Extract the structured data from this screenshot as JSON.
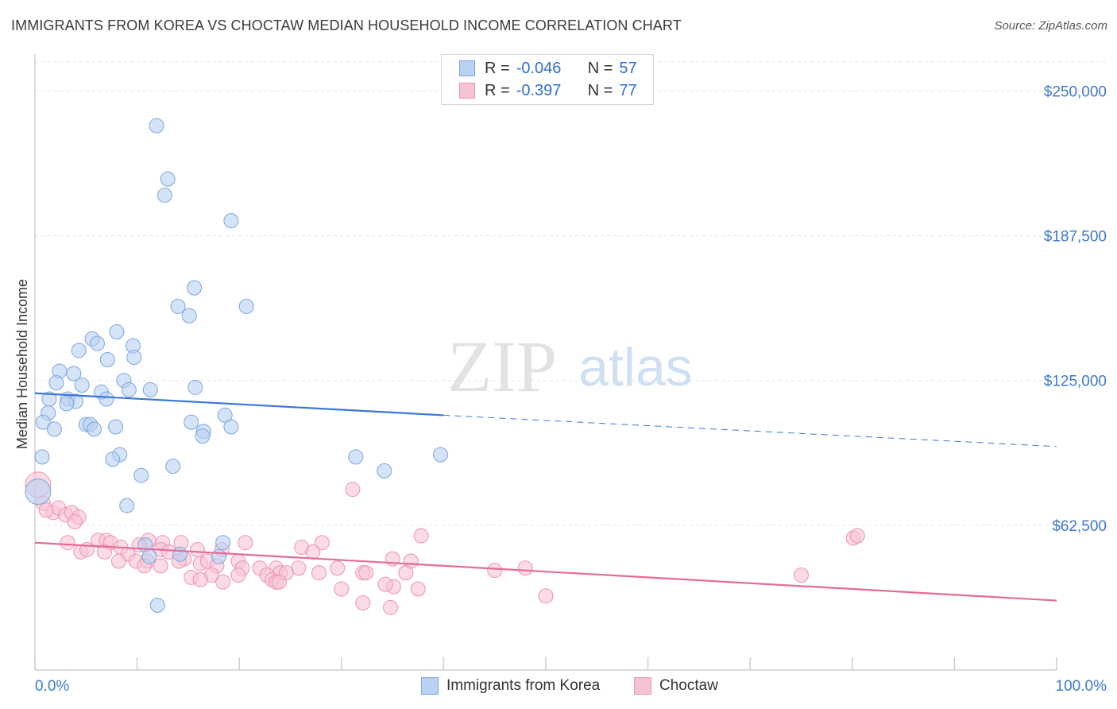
{
  "title": "IMMIGRANTS FROM KOREA VS CHOCTAW MEDIAN HOUSEHOLD INCOME CORRELATION CHART",
  "source": "Source: ZipAtlas.com",
  "watermark": {
    "zip": "ZIP",
    "atlas": "atlas"
  },
  "legend": {
    "series1": {
      "r_label": "R =",
      "r_value": "-0.046",
      "n_label": "N =",
      "n_value": "57"
    },
    "series2": {
      "r_label": "R =",
      "r_value": "-0.397",
      "n_label": "N =",
      "n_value": "77"
    }
  },
  "colors": {
    "blue_fill": "#b9d1f2",
    "blue_stroke": "#7aa6e0",
    "blue_line": "#3a78d4",
    "pink_fill": "#f6c3d5",
    "pink_stroke": "#ec93b3",
    "pink_line": "#e56b98",
    "tick_label": "#3f78cf",
    "grid": "#e3e3e3"
  },
  "chart_data": {
    "type": "scatter",
    "title": "IMMIGRANTS FROM KOREA VS CHOCTAW MEDIAN HOUSEHOLD INCOME CORRELATION CHART",
    "xlabel": "",
    "ylabel": "Median Household Income",
    "xlim": [
      0,
      100
    ],
    "ylim": [
      0,
      262500
    ],
    "x_tick_labels": [
      "0.0%",
      "100.0%"
    ],
    "y_ticks": [
      62500,
      125000,
      187500,
      250000
    ],
    "y_tick_labels": [
      "$62,500",
      "$125,000",
      "$187,500",
      "$250,000"
    ],
    "grid": true,
    "legend_position": "top-center",
    "series": [
      {
        "name": "Immigrants from Korea",
        "r": -0.046,
        "n": 57,
        "trend_solid": [
          [
            0,
            119500
          ],
          [
            40,
            110000
          ]
        ],
        "trend_dashed": [
          [
            40,
            110000
          ],
          [
            100,
            96500
          ]
        ],
        "points": [
          [
            11.9,
            235000
          ],
          [
            13.0,
            212000
          ],
          [
            12.7,
            205000
          ],
          [
            19.2,
            194000
          ],
          [
            15.6,
            165000
          ],
          [
            14.0,
            157000
          ],
          [
            20.7,
            157000
          ],
          [
            15.1,
            153000
          ],
          [
            8.0,
            146000
          ],
          [
            5.6,
            143000
          ],
          [
            6.1,
            141000
          ],
          [
            9.6,
            140000
          ],
          [
            4.3,
            138000
          ],
          [
            9.7,
            135000
          ],
          [
            7.1,
            134000
          ],
          [
            2.4,
            129000
          ],
          [
            3.8,
            128000
          ],
          [
            8.7,
            125000
          ],
          [
            2.1,
            124000
          ],
          [
            4.6,
            123000
          ],
          [
            15.7,
            122000
          ],
          [
            9.2,
            121000
          ],
          [
            11.3,
            121000
          ],
          [
            6.5,
            120000
          ],
          [
            1.4,
            117000
          ],
          [
            3.2,
            117000
          ],
          [
            7.0,
            117000
          ],
          [
            4.0,
            116000
          ],
          [
            3.1,
            115000
          ],
          [
            1.3,
            111000
          ],
          [
            18.6,
            110000
          ],
          [
            0.8,
            107000
          ],
          [
            15.3,
            107000
          ],
          [
            5.0,
            106000
          ],
          [
            5.4,
            106000
          ],
          [
            7.9,
            105000
          ],
          [
            19.2,
            105000
          ],
          [
            1.9,
            104000
          ],
          [
            5.8,
            104000
          ],
          [
            16.5,
            103000
          ],
          [
            16.4,
            101000
          ],
          [
            0.7,
            92000
          ],
          [
            8.3,
            93000
          ],
          [
            7.6,
            91000
          ],
          [
            31.4,
            92000
          ],
          [
            39.7,
            93000
          ],
          [
            13.5,
            88000
          ],
          [
            10.4,
            84000
          ],
          [
            34.2,
            86000
          ],
          [
            0.3,
            77000
          ],
          [
            9.0,
            71000
          ],
          [
            18.4,
            55000
          ],
          [
            10.8,
            54000
          ],
          [
            11.2,
            49000
          ],
          [
            14.2,
            50000
          ],
          [
            18.0,
            49000
          ],
          [
            12.0,
            28000
          ]
        ]
      },
      {
        "name": "Choctaw",
        "r": -0.397,
        "n": 77,
        "trend_solid": [
          [
            0,
            55000
          ],
          [
            100,
            30000
          ]
        ],
        "points": [
          [
            0.3,
            80000
          ],
          [
            0.8,
            72000
          ],
          [
            1.8,
            68000
          ],
          [
            2.3,
            70000
          ],
          [
            3.0,
            67000
          ],
          [
            3.6,
            68000
          ],
          [
            4.3,
            66000
          ],
          [
            1.1,
            69000
          ],
          [
            3.9,
            64000
          ],
          [
            31.1,
            78000
          ],
          [
            37.8,
            58000
          ],
          [
            80.1,
            57000
          ],
          [
            80.5,
            58000
          ],
          [
            3.2,
            55000
          ],
          [
            6.2,
            56000
          ],
          [
            7.0,
            56000
          ],
          [
            7.4,
            55000
          ],
          [
            11.1,
            56000
          ],
          [
            12.5,
            55000
          ],
          [
            14.3,
            55000
          ],
          [
            20.6,
            55000
          ],
          [
            28.1,
            55000
          ],
          [
            8.4,
            53000
          ],
          [
            10.2,
            54000
          ],
          [
            12.3,
            52000
          ],
          [
            13.1,
            51000
          ],
          [
            15.9,
            52000
          ],
          [
            18.3,
            52000
          ],
          [
            26.1,
            53000
          ],
          [
            27.2,
            51000
          ],
          [
            4.5,
            51000
          ],
          [
            5.1,
            52000
          ],
          [
            6.8,
            51000
          ],
          [
            9.1,
            50000
          ],
          [
            9.9,
            47000
          ],
          [
            11.0,
            47000
          ],
          [
            14.6,
            48000
          ],
          [
            16.2,
            46000
          ],
          [
            16.9,
            47000
          ],
          [
            19.9,
            47000
          ],
          [
            22.0,
            44000
          ],
          [
            25.8,
            44000
          ],
          [
            35.0,
            48000
          ],
          [
            36.8,
            47000
          ],
          [
            8.2,
            47000
          ],
          [
            10.7,
            45000
          ],
          [
            12.3,
            45000
          ],
          [
            14.1,
            47000
          ],
          [
            17.8,
            45000
          ],
          [
            20.3,
            44000
          ],
          [
            23.6,
            44000
          ],
          [
            24.0,
            42000
          ],
          [
            29.6,
            44000
          ],
          [
            32.1,
            42000
          ],
          [
            45.0,
            43000
          ],
          [
            48.0,
            44000
          ],
          [
            15.3,
            40000
          ],
          [
            17.3,
            41000
          ],
          [
            19.9,
            41000
          ],
          [
            22.7,
            41000
          ],
          [
            24.6,
            42000
          ],
          [
            27.8,
            42000
          ],
          [
            32.4,
            42000
          ],
          [
            36.3,
            42000
          ],
          [
            75.0,
            41000
          ],
          [
            16.2,
            39000
          ],
          [
            18.4,
            38000
          ],
          [
            23.2,
            39000
          ],
          [
            23.6,
            38000
          ],
          [
            30.0,
            35000
          ],
          [
            35.1,
            36000
          ],
          [
            37.5,
            35000
          ],
          [
            34.3,
            37000
          ],
          [
            50.0,
            32000
          ],
          [
            32.1,
            29000
          ],
          [
            34.8,
            27000
          ],
          [
            23.9,
            38000
          ]
        ]
      }
    ]
  },
  "bottom_legend": {
    "series1": "Immigrants from Korea",
    "series2": "Choctaw"
  }
}
